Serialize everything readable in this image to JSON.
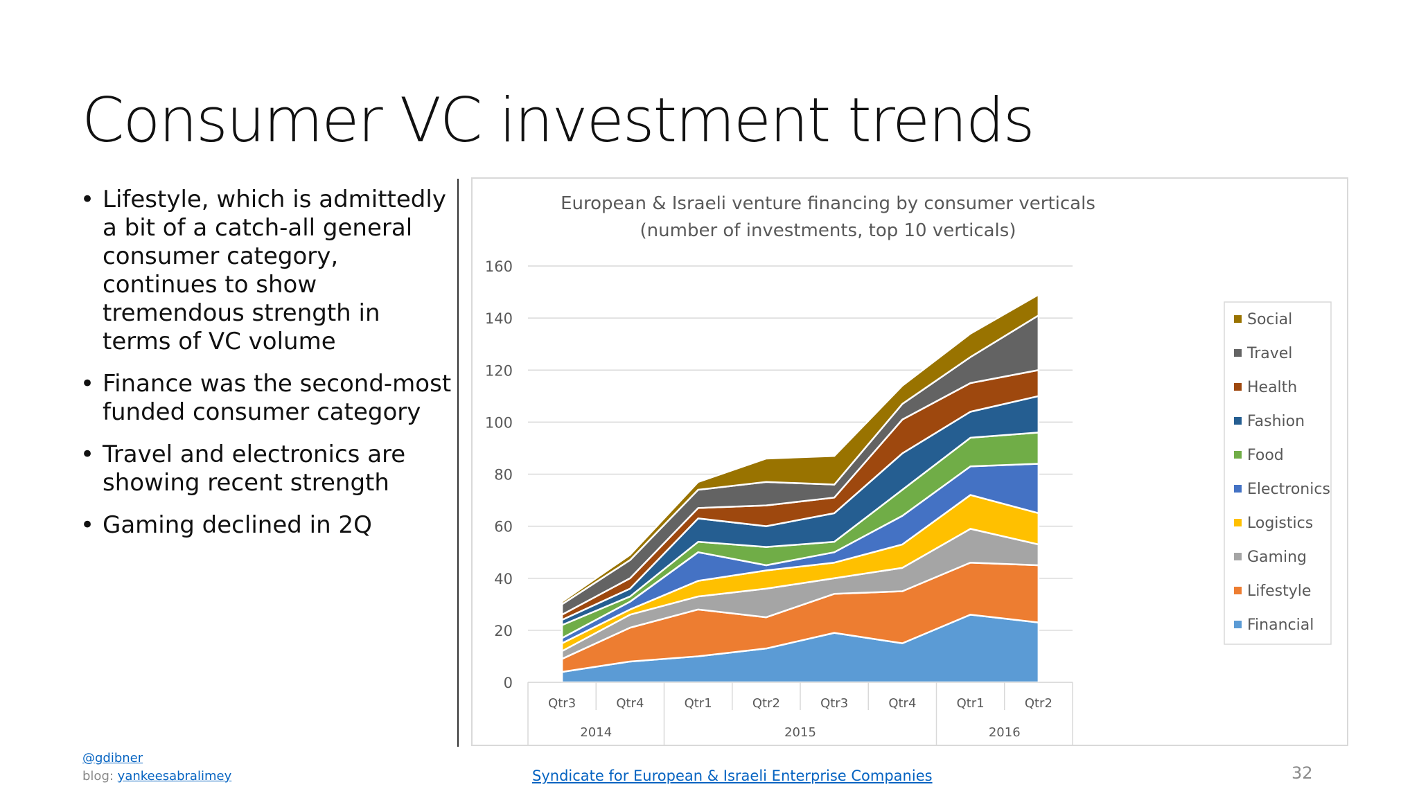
{
  "slide": {
    "title": "Consumer VC investment trends",
    "bullets": [
      "Lifestyle, which is admittedly a bit of a catch-all general consumer category, continues to show tremendous strength in terms of VC volume",
      "Finance was the second-most funded consumer category",
      "Travel and electronics are showing recent strength",
      "Gaming declined in 2Q"
    ],
    "page_number": "32"
  },
  "footer": {
    "handle": "@gdibner",
    "blog_prefix": "blog:",
    "blog_link": "yankeesabralimey",
    "source_link": "Syndicate for European & Israeli Enterprise Companies"
  },
  "colors": {
    "Financial": "#5b9bd5",
    "Lifestyle": "#ed7d31",
    "Gaming": "#a5a5a5",
    "Logistics": "#ffc000",
    "Electronics": "#4472c4",
    "Food": "#70ad47",
    "Fashion": "#255e91",
    "Health": "#9e480e",
    "Travel": "#636363",
    "Social": "#997300"
  },
  "chart_data": {
    "type": "area",
    "stacked": true,
    "title": "European & Israeli venture financing by consumer verticals",
    "subtitle": "(number of investments, top 10 verticals)",
    "categories": [
      "Qtr3",
      "Qtr4",
      "Qtr1",
      "Qtr2",
      "Qtr3",
      "Qtr4",
      "Qtr1",
      "Qtr2"
    ],
    "year_groups": [
      {
        "label": "2014",
        "span": 2
      },
      {
        "label": "2015",
        "span": 4
      },
      {
        "label": "2016",
        "span": 2
      }
    ],
    "ylim": [
      0,
      160
    ],
    "yticks": [
      0,
      20,
      40,
      60,
      80,
      100,
      120,
      140,
      160
    ],
    "grid": true,
    "legend_position": "right",
    "series": [
      {
        "name": "Financial",
        "values": [
          4,
          8,
          10,
          13,
          19,
          15,
          26,
          23
        ]
      },
      {
        "name": "Lifestyle",
        "values": [
          5,
          13,
          18,
          12,
          15,
          20,
          20,
          22
        ]
      },
      {
        "name": "Gaming",
        "values": [
          3,
          5,
          5,
          11,
          6,
          9,
          13,
          8
        ]
      },
      {
        "name": "Logistics",
        "values": [
          3,
          2,
          6,
          7,
          6,
          9,
          13,
          12
        ]
      },
      {
        "name": "Electronics",
        "values": [
          2,
          3,
          11,
          2,
          4,
          11,
          11,
          19
        ]
      },
      {
        "name": "Food",
        "values": [
          5,
          2,
          4,
          7,
          4,
          10,
          11,
          12
        ]
      },
      {
        "name": "Fashion",
        "values": [
          2,
          3,
          9,
          8,
          11,
          14,
          10,
          14
        ]
      },
      {
        "name": "Health",
        "values": [
          2,
          4,
          4,
          8,
          6,
          13,
          11,
          10
        ]
      },
      {
        "name": "Travel",
        "values": [
          4,
          7,
          7,
          9,
          5,
          6,
          10,
          21
        ]
      },
      {
        "name": "Social",
        "values": [
          1,
          2,
          3,
          9,
          11,
          7,
          9,
          8
        ]
      }
    ]
  }
}
